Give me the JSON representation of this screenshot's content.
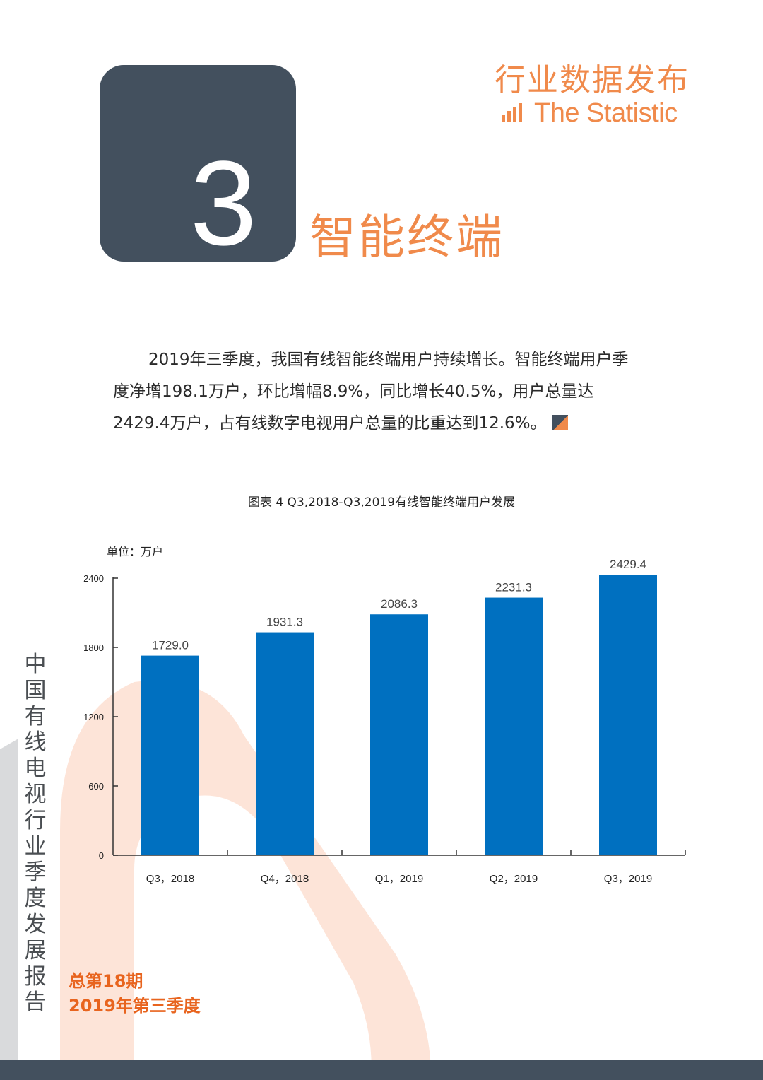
{
  "header": {
    "section_number": "3",
    "section_title": "智能终端",
    "brand_cn": "行业数据发布",
    "brand_en": "The Statistic",
    "brand_icon": "bar-chart-icon"
  },
  "paragraph": {
    "line1": "2019年三季度，我国有线智能终端用户持续增长。智能终端用户季",
    "line2": "度净增198.1万户，环比增幅8.9%，同比增长40.5%，用户总量达",
    "line3": "2429.4万户，占有线数字电视用户总量的比重达到12.6%。"
  },
  "chart_caption": "图表 4 Q3,2018-Q3,2019有线智能终端用户发展",
  "chart_unit": "单位：万户",
  "chart_data": {
    "type": "bar",
    "categories": [
      "Q3，2018",
      "Q4，2018",
      "Q1，2019",
      "Q2，2019",
      "Q3，2019"
    ],
    "values": [
      1729.0,
      1931.3,
      2086.3,
      2231.3,
      2429.4
    ],
    "data_labels": [
      "1729.0",
      "1931.3",
      "2086.3",
      "2231.3",
      "2429.4"
    ],
    "yticks": [
      "0",
      "600",
      "1200",
      "1800",
      "2400"
    ],
    "ylim": [
      0,
      2400
    ],
    "grid": false,
    "legend": false,
    "bar_color": "#0070c0"
  },
  "footer": {
    "report_name": "中国有线电视行业季度发展报告",
    "issue_no": "总第18期",
    "issue_period": "2019年第三季度"
  },
  "colors": {
    "accent_orange": "#f08a4b",
    "dark_slate": "#43505e",
    "bar_blue": "#0070c0",
    "deco_peach": "#fde4d8"
  }
}
